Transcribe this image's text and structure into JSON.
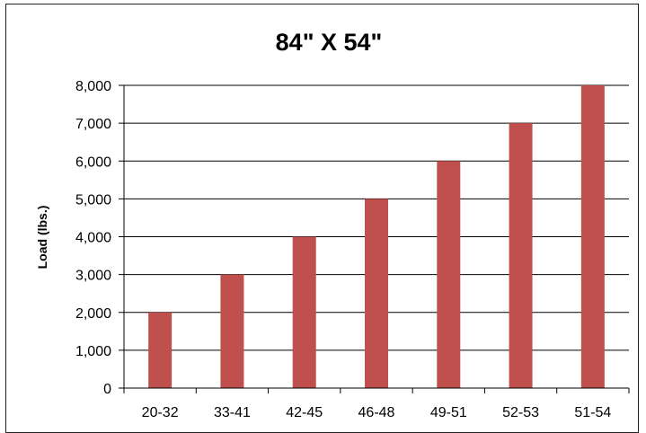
{
  "chart_data": {
    "type": "bar",
    "title": "84\" X 54\"",
    "xlabel": "",
    "ylabel": "Load (lbs.)",
    "categories": [
      "20-32",
      "33-41",
      "42-45",
      "46-48",
      "49-51",
      "52-53",
      "51-54"
    ],
    "values": [
      2000,
      3000,
      4000,
      5000,
      6000,
      7000,
      8000
    ],
    "ylim": [
      0,
      8000
    ],
    "yticks": [
      "0",
      "1,000",
      "2,000",
      "3,000",
      "4,000",
      "5,000",
      "6,000",
      "7,000",
      "8,000"
    ],
    "grid": true,
    "legend": "none",
    "bar_color": "#C0504D"
  }
}
